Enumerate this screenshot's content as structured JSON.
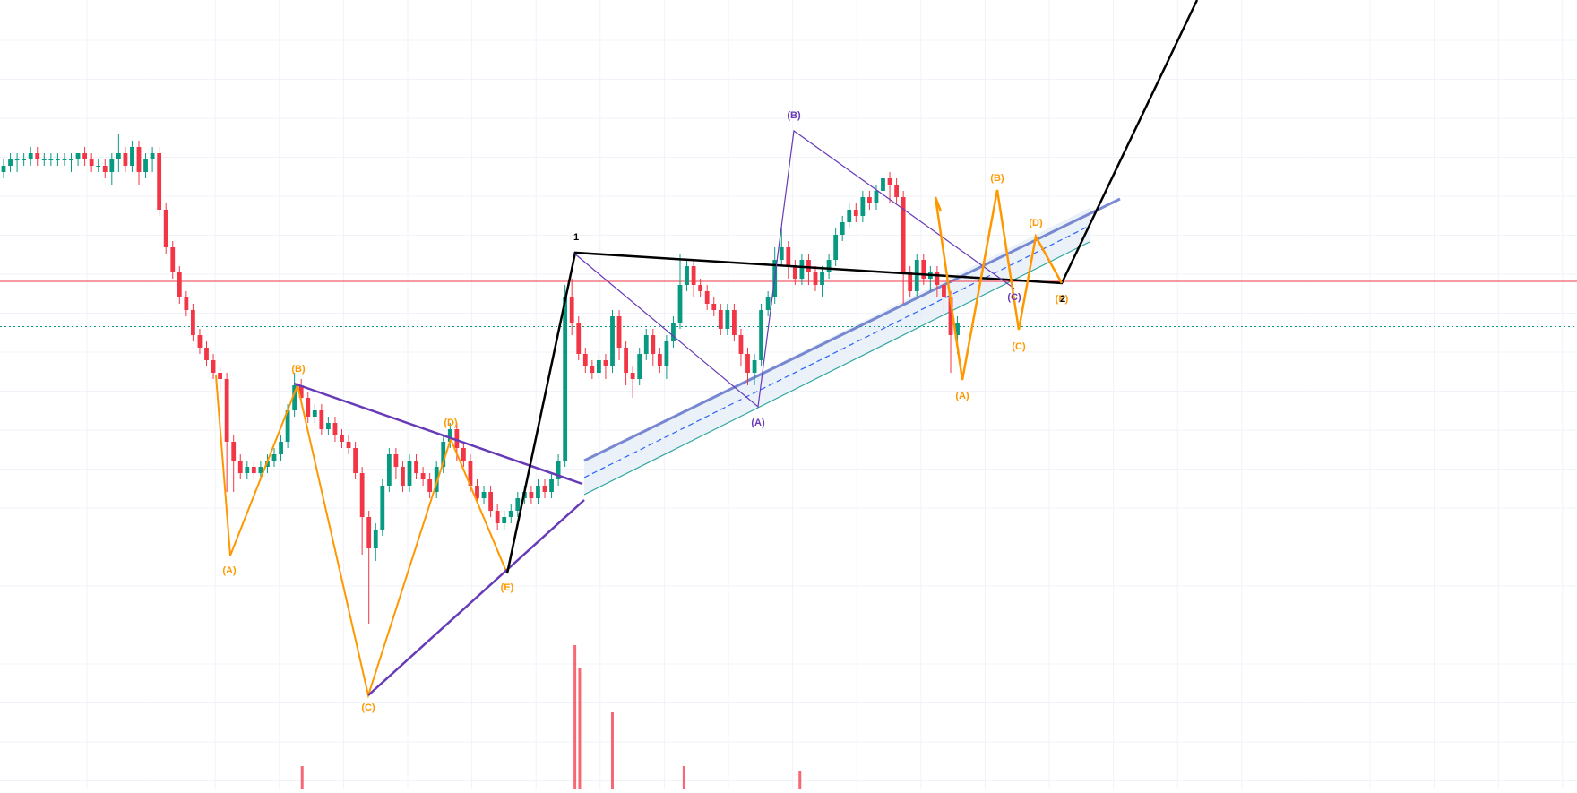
{
  "chart_data": {
    "type": "candlestick",
    "title": "",
    "xlabel": "",
    "ylabel": "",
    "grid": true,
    "xlim": [
      0,
      230
    ],
    "ylim": [
      0,
      100
    ],
    "colors": {
      "up": "#089981",
      "down": "#f23645",
      "wave_orange": "#ff9800",
      "wave_purple": "#673ab7",
      "wave_black": "#000000",
      "channel_fill": "#e3ebf7",
      "channel_mid": "#2962ff",
      "channel_lower": "#26a69a",
      "level_red": "#f23645",
      "level_green": "#089981",
      "grid": "#f0f3fa"
    },
    "key_points": [
      [
        0,
        84
      ],
      [
        17,
        88
      ],
      [
        24,
        76
      ],
      [
        33,
        48
      ],
      [
        34,
        30
      ],
      [
        44,
        51
      ],
      [
        55,
        10
      ],
      [
        67,
        44
      ],
      [
        75,
        27
      ],
      [
        84,
        66
      ],
      [
        90,
        52
      ],
      [
        100,
        70
      ],
      [
        111,
        49
      ],
      [
        116,
        83
      ],
      [
        127,
        68
      ],
      [
        133,
        81
      ],
      [
        138,
        66
      ],
      [
        141,
        50
      ],
      [
        145,
        42
      ],
      [
        152,
        55
      ],
      [
        156,
        62
      ]
    ],
    "levels": [
      {
        "name": "resistance",
        "y": 64.2,
        "style": "solid",
        "color": "#f23645"
      },
      {
        "name": "current",
        "y": 58.7,
        "style": "dotted",
        "color": "#089981"
      }
    ],
    "volume_spikes": [
      {
        "x": 43,
        "v": 25
      },
      {
        "x": 83,
        "v": 160
      },
      {
        "x": 83.7,
        "v": 135
      },
      {
        "x": 88.5,
        "v": 85
      },
      {
        "x": 99,
        "v": 25
      },
      {
        "x": 116,
        "v": 20
      }
    ],
    "waves": [
      {
        "name": "orange-triangle",
        "color": "#ff9800",
        "points": [
          [
            31,
            51.5
          ],
          [
            33.6,
            30
          ],
          [
            43.3,
            51.5
          ],
          [
            53.8,
            12
          ],
          [
            65.8,
            44.4
          ],
          [
            74.2,
            27
          ]
        ],
        "labels": [
          "(B)",
          "(A)",
          "(B)",
          "(C)",
          "(D)",
          "(E)"
        ]
      },
      {
        "name": "purple-abc",
        "color": "#673ab7",
        "points": [
          [
            83.9,
            67
          ],
          [
            110.5,
            49
          ],
          [
            115.8,
            82.5
          ],
          [
            147.5,
            64.5
          ]
        ],
        "labels": [
          "",
          "(A)",
          "(B)",
          "(C)"
        ]
      },
      {
        "name": "orange-abcde",
        "color": "#ff9800",
        "points": [
          [
            136.7,
            73
          ],
          [
            140.5,
            52
          ],
          [
            145.5,
            75
          ],
          [
            148.7,
            58
          ],
          [
            151.1,
            69
          ],
          [
            155,
            64
          ]
        ],
        "labels": [
          "",
          "(A)",
          "(B)",
          "(C)",
          "(D)",
          "(E)"
        ]
      },
      {
        "name": "black-impulse",
        "color": "#000000",
        "points": [
          [
            74.2,
            27
          ],
          [
            83.9,
            67
          ],
          [
            155,
            64
          ],
          [
            175,
            100
          ]
        ],
        "labels": [
          "",
          "1",
          "2",
          ""
        ]
      }
    ],
    "candles": [
      [
        0,
        84,
        85,
        86,
        83
      ],
      [
        1,
        85,
        86,
        87,
        84
      ],
      [
        2,
        86,
        86,
        87,
        84
      ],
      [
        3,
        86,
        86,
        87,
        85
      ],
      [
        4,
        86,
        87,
        88,
        85
      ],
      [
        5,
        87,
        86,
        88,
        85
      ],
      [
        6,
        86,
        86,
        87,
        85
      ],
      [
        7,
        86,
        86,
        87,
        85
      ],
      [
        8,
        86,
        86,
        87,
        85
      ],
      [
        9,
        86,
        86,
        87,
        85
      ],
      [
        10,
        86,
        86,
        87,
        84
      ],
      [
        11,
        86,
        87,
        87,
        85
      ],
      [
        12,
        87,
        86,
        88,
        85
      ],
      [
        13,
        86,
        85,
        87,
        84
      ],
      [
        14,
        85,
        85,
        86,
        84
      ],
      [
        15,
        85,
        84,
        86,
        83
      ],
      [
        16,
        84,
        86,
        87,
        82
      ],
      [
        17,
        86,
        87,
        90,
        84
      ],
      [
        18,
        87,
        85,
        88,
        84
      ],
      [
        19,
        85,
        88,
        89,
        84
      ],
      [
        20,
        88,
        84,
        89,
        82
      ],
      [
        21,
        84,
        86,
        87,
        83
      ],
      [
        22,
        86,
        87,
        88,
        84
      ],
      [
        23,
        87,
        78,
        88,
        77
      ],
      [
        24,
        78,
        72,
        79,
        71
      ],
      [
        25,
        72,
        68,
        73,
        67
      ],
      [
        26,
        68,
        64,
        69,
        63
      ],
      [
        27,
        64,
        62,
        65,
        61
      ],
      [
        28,
        62,
        58,
        63,
        57
      ],
      [
        29,
        58,
        56,
        59,
        55
      ],
      [
        30,
        56,
        54,
        57,
        53
      ],
      [
        31,
        54,
        52,
        55,
        51
      ],
      [
        32,
        52,
        51,
        53,
        49
      ],
      [
        33,
        51,
        41,
        52,
        33
      ],
      [
        34,
        41,
        38,
        42,
        33
      ],
      [
        35,
        38,
        36,
        39,
        35
      ],
      [
        36,
        36,
        37,
        38,
        35
      ],
      [
        37,
        37,
        36,
        38,
        35
      ],
      [
        38,
        36,
        37,
        38,
        35
      ],
      [
        39,
        37,
        38,
        39,
        36
      ],
      [
        40,
        38,
        39,
        40,
        37
      ],
      [
        41,
        39,
        41,
        42,
        38
      ],
      [
        42,
        41,
        46,
        47,
        40
      ],
      [
        43,
        46,
        50,
        52,
        45
      ],
      [
        44,
        50,
        48,
        51,
        47
      ],
      [
        45,
        48,
        45,
        49,
        44
      ],
      [
        46,
        45,
        46,
        47,
        44
      ],
      [
        47,
        46,
        43,
        47,
        42
      ],
      [
        48,
        43,
        44,
        45,
        42
      ],
      [
        49,
        44,
        42,
        45,
        41
      ],
      [
        50,
        42,
        41,
        43,
        40
      ],
      [
        51,
        41,
        40,
        42,
        39
      ],
      [
        52,
        40,
        36,
        41,
        35
      ],
      [
        53,
        36,
        29,
        37,
        23
      ],
      [
        54,
        29,
        24,
        30,
        12
      ],
      [
        55,
        24,
        27,
        28,
        22
      ],
      [
        56,
        27,
        34,
        35,
        26
      ],
      [
        57,
        34,
        39,
        40,
        33
      ],
      [
        58,
        39,
        37,
        40,
        35
      ],
      [
        59,
        37,
        34,
        38,
        33
      ],
      [
        60,
        34,
        38,
        39,
        33
      ],
      [
        61,
        38,
        36,
        39,
        35
      ],
      [
        62,
        36,
        35,
        37,
        34
      ],
      [
        63,
        35,
        33,
        36,
        32
      ],
      [
        64,
        33,
        37,
        38,
        32
      ],
      [
        65,
        37,
        41,
        42,
        36
      ],
      [
        66,
        41,
        43,
        44,
        40
      ],
      [
        67,
        43,
        40,
        44,
        38
      ],
      [
        68,
        40,
        38,
        41,
        37
      ],
      [
        69,
        38,
        34,
        39,
        33
      ],
      [
        70,
        34,
        32,
        35,
        31
      ],
      [
        71,
        32,
        33,
        34,
        31
      ],
      [
        72,
        33,
        30,
        34,
        29
      ],
      [
        73,
        30,
        28,
        31,
        27
      ],
      [
        74,
        28,
        29,
        30,
        27
      ],
      [
        75,
        29,
        30,
        31,
        28
      ],
      [
        76,
        30,
        32,
        33,
        29
      ],
      [
        77,
        32,
        33,
        34,
        31
      ],
      [
        78,
        33,
        32,
        34,
        31
      ],
      [
        79,
        32,
        34,
        35,
        31
      ],
      [
        80,
        34,
        33,
        35,
        32
      ],
      [
        81,
        33,
        35,
        36,
        32
      ],
      [
        82,
        35,
        38,
        39,
        34
      ],
      [
        83,
        38,
        64,
        66,
        37
      ],
      [
        84,
        64,
        60,
        67,
        58
      ],
      [
        85,
        60,
        55,
        61,
        54
      ],
      [
        86,
        55,
        53,
        56,
        52
      ],
      [
        87,
        53,
        52,
        54,
        51
      ],
      [
        88,
        52,
        54,
        55,
        51
      ],
      [
        89,
        54,
        53,
        55,
        51
      ],
      [
        90,
        53,
        61,
        62,
        52
      ],
      [
        91,
        61,
        56,
        62,
        54
      ],
      [
        92,
        56,
        52,
        57,
        50
      ],
      [
        93,
        52,
        51,
        53,
        48
      ],
      [
        94,
        51,
        55,
        56,
        50
      ],
      [
        95,
        55,
        58,
        59,
        54
      ],
      [
        96,
        58,
        55,
        59,
        53
      ],
      [
        97,
        55,
        53,
        56,
        52
      ],
      [
        98,
        53,
        57,
        58,
        51
      ],
      [
        99,
        57,
        60,
        61,
        56
      ],
      [
        100,
        60,
        66,
        71,
        59
      ],
      [
        101,
        66,
        69,
        70,
        65
      ],
      [
        102,
        69,
        66,
        70,
        64
      ],
      [
        103,
        66,
        65,
        67,
        64
      ],
      [
        104,
        65,
        63,
        66,
        62
      ],
      [
        105,
        63,
        62,
        64,
        61
      ],
      [
        106,
        62,
        59,
        63,
        58
      ],
      [
        107,
        59,
        62,
        63,
        58
      ],
      [
        108,
        62,
        58,
        63,
        57
      ],
      [
        109,
        58,
        55,
        59,
        53
      ],
      [
        110,
        55,
        52,
        56,
        50
      ],
      [
        111,
        52,
        54,
        55,
        50
      ],
      [
        112,
        54,
        62,
        63,
        53
      ],
      [
        113,
        62,
        64,
        65,
        61
      ],
      [
        114,
        64,
        70,
        72,
        63
      ],
      [
        115,
        70,
        72,
        75,
        69
      ],
      [
        116,
        72,
        69,
        73,
        67
      ],
      [
        117,
        69,
        67,
        70,
        66
      ],
      [
        118,
        67,
        70,
        71,
        66
      ],
      [
        119,
        70,
        68,
        71,
        66
      ],
      [
        120,
        68,
        66,
        69,
        65
      ],
      [
        121,
        66,
        68,
        69,
        64
      ],
      [
        122,
        68,
        70,
        71,
        67
      ],
      [
        123,
        70,
        74,
        75,
        69
      ],
      [
        124,
        74,
        76,
        77,
        73
      ],
      [
        125,
        76,
        78,
        79,
        75
      ],
      [
        126,
        78,
        77,
        79,
        76
      ],
      [
        127,
        77,
        80,
        81,
        76
      ],
      [
        128,
        80,
        79,
        81,
        78
      ],
      [
        129,
        79,
        81,
        82,
        78
      ],
      [
        130,
        81,
        83,
        84,
        80
      ],
      [
        131,
        83,
        82,
        84,
        79
      ],
      [
        132,
        82,
        80,
        83,
        79
      ],
      [
        133,
        80,
        68,
        81,
        63
      ],
      [
        134,
        68,
        65,
        69,
        64
      ],
      [
        135,
        65,
        70,
        71,
        64
      ],
      [
        136,
        70,
        67,
        71,
        66
      ],
      [
        137,
        67,
        68,
        69,
        65
      ],
      [
        138,
        68,
        66,
        69,
        64
      ],
      [
        139,
        66,
        64,
        67,
        61
      ],
      [
        140,
        64,
        58,
        65,
        52
      ],
      [
        141,
        58,
        60,
        61,
        55
      ]
    ]
  }
}
